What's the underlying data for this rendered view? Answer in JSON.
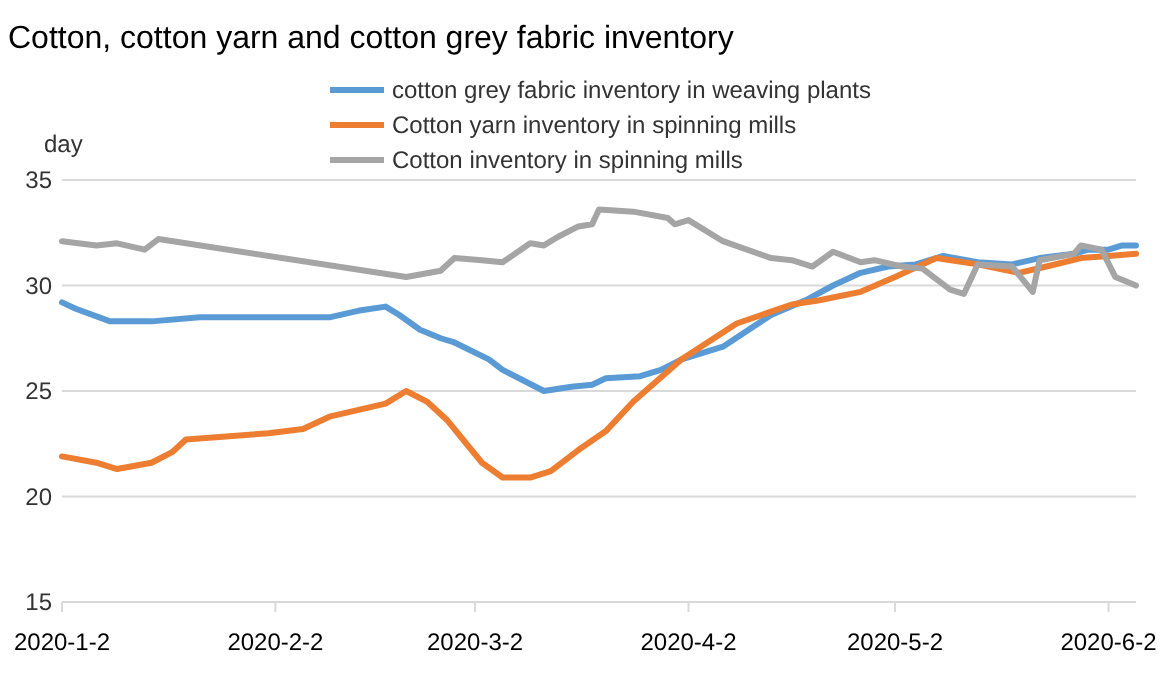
{
  "chart_data": {
    "type": "line",
    "title": "Cotton, cotton yarn and cotton grey fabric inventory",
    "ylabel": "day",
    "legend": "top",
    "grid": "y",
    "line_style": "solid",
    "marker": "none",
    "xlim": [
      "2020-01-02",
      "2020-06-06"
    ],
    "xticks": [
      {
        "value": "2020-01-02",
        "label": "2020-1-2"
      },
      {
        "value": "2020-02-02",
        "label": "2020-2-2"
      },
      {
        "value": "2020-03-02",
        "label": "2020-3-2"
      },
      {
        "value": "2020-04-02",
        "label": "2020-4-2"
      },
      {
        "value": "2020-05-02",
        "label": "2020-5-2"
      },
      {
        "value": "2020-06-02",
        "label": "2020-6-2"
      }
    ],
    "ylim": [
      15,
      35
    ],
    "yticks": [
      15,
      20,
      25,
      30,
      35
    ],
    "series": [
      {
        "name": "cotton grey fabric inventory in weaving plants",
        "color": "#5b9bd5",
        "x": [
          "2020-01-02",
          "2020-01-04",
          "2020-01-09",
          "2020-01-15",
          "2020-01-22",
          "2020-02-10",
          "2020-02-14",
          "2020-02-18",
          "2020-02-20",
          "2020-02-23",
          "2020-02-26",
          "2020-02-28",
          "2020-03-04",
          "2020-03-06",
          "2020-03-12",
          "2020-03-16",
          "2020-03-19",
          "2020-03-21",
          "2020-03-26",
          "2020-03-29",
          "2020-04-01",
          "2020-04-07",
          "2020-04-14",
          "2020-04-19",
          "2020-04-23",
          "2020-04-27",
          "2020-05-01",
          "2020-05-05",
          "2020-05-09",
          "2020-05-14",
          "2020-05-19",
          "2020-05-23",
          "2020-05-28",
          "2020-05-30",
          "2020-06-02",
          "2020-06-04",
          "2020-06-06"
        ],
        "values": [
          29.2,
          28.9,
          28.3,
          28.3,
          28.5,
          28.5,
          28.8,
          29.0,
          28.6,
          27.9,
          27.5,
          27.3,
          26.5,
          26.0,
          25.0,
          25.2,
          25.3,
          25.6,
          25.7,
          26.0,
          26.5,
          27.1,
          28.6,
          29.3,
          30.0,
          30.6,
          30.9,
          31.0,
          31.4,
          31.1,
          31.0,
          31.3,
          31.5,
          31.7,
          31.7,
          31.9,
          31.9
        ]
      },
      {
        "name": "Cotton yarn inventory in spinning mills",
        "color": "#ed7d31",
        "x": [
          "2020-01-02",
          "2020-01-07",
          "2020-01-10",
          "2020-01-15",
          "2020-01-18",
          "2020-01-20",
          "2020-02-01",
          "2020-02-06",
          "2020-02-10",
          "2020-02-18",
          "2020-02-21",
          "2020-02-24",
          "2020-02-27",
          "2020-03-03",
          "2020-03-06",
          "2020-03-10",
          "2020-03-13",
          "2020-03-17",
          "2020-03-21",
          "2020-03-25",
          "2020-04-01",
          "2020-04-09",
          "2020-04-17",
          "2020-04-21",
          "2020-04-27",
          "2020-05-02",
          "2020-05-08",
          "2020-05-14",
          "2020-05-20",
          "2020-05-24",
          "2020-05-29",
          "2020-06-02",
          "2020-06-06"
        ],
        "values": [
          21.9,
          21.6,
          21.3,
          21.6,
          22.1,
          22.7,
          23.0,
          23.2,
          23.8,
          24.4,
          25.0,
          24.5,
          23.6,
          21.6,
          20.9,
          20.9,
          21.2,
          22.2,
          23.1,
          24.5,
          26.5,
          28.2,
          29.1,
          29.3,
          29.7,
          30.4,
          31.3,
          31.0,
          30.6,
          30.9,
          31.3,
          31.4,
          31.5
        ]
      },
      {
        "name": "Cotton inventory in spinning mills",
        "color": "#a5a5a5",
        "x": [
          "2020-01-02",
          "2020-01-07",
          "2020-01-10",
          "2020-01-14",
          "2020-01-16",
          "2020-02-21",
          "2020-02-26",
          "2020-02-28",
          "2020-03-03",
          "2020-03-06",
          "2020-03-10",
          "2020-03-12",
          "2020-03-14",
          "2020-03-17",
          "2020-03-19",
          "2020-03-20",
          "2020-03-25",
          "2020-03-30",
          "2020-03-31",
          "2020-04-02",
          "2020-04-07",
          "2020-04-14",
          "2020-04-17",
          "2020-04-20",
          "2020-04-23",
          "2020-04-27",
          "2020-04-29",
          "2020-05-03",
          "2020-05-06",
          "2020-05-10",
          "2020-05-12",
          "2020-05-14",
          "2020-05-19",
          "2020-05-22",
          "2020-05-23",
          "2020-05-28",
          "2020-05-29",
          "2020-06-01",
          "2020-06-03",
          "2020-06-06"
        ],
        "values": [
          32.1,
          31.9,
          32.0,
          31.7,
          32.2,
          30.4,
          30.7,
          31.3,
          31.2,
          31.1,
          32.0,
          31.9,
          32.3,
          32.8,
          32.9,
          33.6,
          33.5,
          33.2,
          32.9,
          33.1,
          32.1,
          31.3,
          31.2,
          30.9,
          31.6,
          31.1,
          31.2,
          30.9,
          30.8,
          29.8,
          29.6,
          31.0,
          30.9,
          29.7,
          31.2,
          31.5,
          31.9,
          31.7,
          30.4,
          30.0
        ]
      }
    ]
  }
}
